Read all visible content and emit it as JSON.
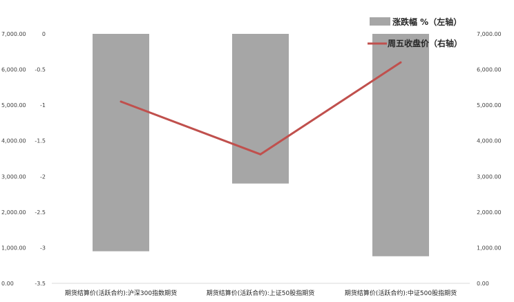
{
  "chart_data": {
    "type": "bar",
    "categories": [
      "期货结算价(活跃合约):沪深300指数期货",
      "期货结算价(活跃合约):上证50股指期货",
      "期货结算价(活跃合约):中证500股指期货"
    ],
    "series": [
      {
        "name": "涨跌幅 %（左轴）",
        "type": "bar",
        "axis": "left",
        "color": "#a6a6a6",
        "values": [
          -3.05,
          -2.1,
          -3.12
        ]
      },
      {
        "name": "周五收盘价（右轴）",
        "type": "line",
        "axis": "right",
        "color": "#c0504d",
        "values": [
          5100,
          3620,
          6200
        ]
      }
    ],
    "left_axis": {
      "ylim": [
        -3.5,
        0
      ],
      "ticks": [
        "0",
        "-0.5",
        "-1",
        "-1.5",
        "-2",
        "-2.5",
        "-3",
        "-3.5"
      ]
    },
    "right_axis": {
      "ylim": [
        0,
        7000
      ],
      "ticks": [
        "7,000.00",
        "6,000.00",
        "5,000.00",
        "4,000.00",
        "3,000.00",
        "2,000.00",
        "1,000.00",
        "0.00"
      ]
    },
    "far_left_axis": {
      "ticks": [
        "7,000.00",
        "6,000.00",
        "5,000.00",
        "4,000.00",
        "3,000.00",
        "2,000.00",
        "1,000.00",
        "0.00"
      ]
    },
    "legend_position": "top-right",
    "grid": false
  }
}
